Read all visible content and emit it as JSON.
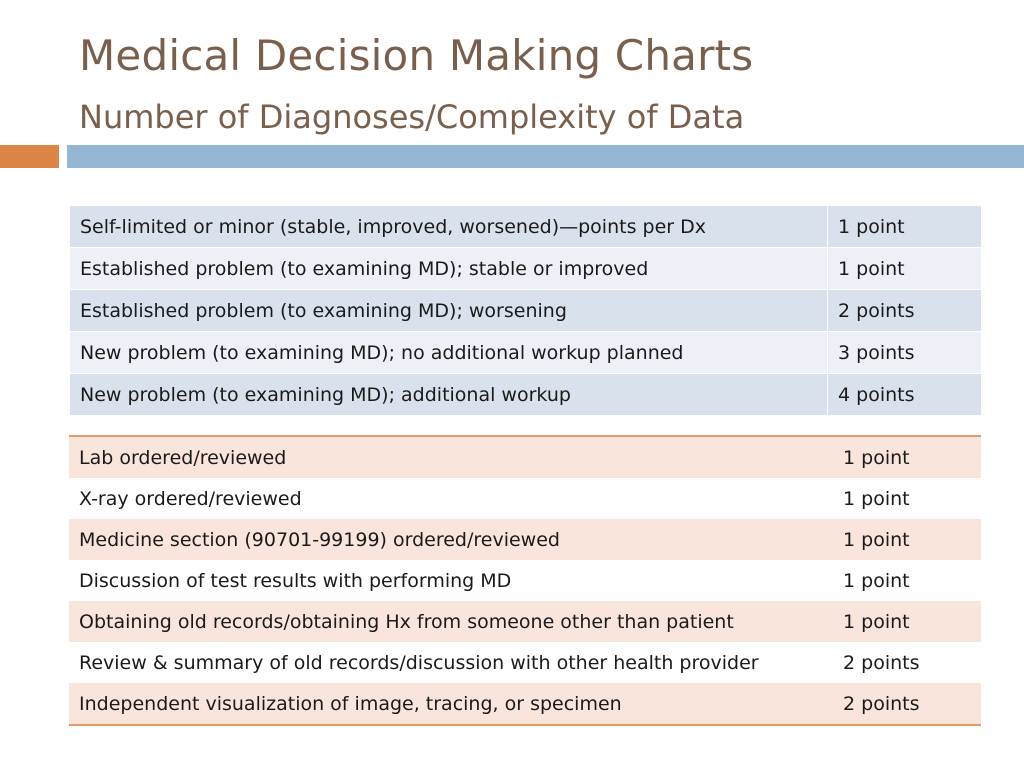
{
  "slide": {
    "title": "Medical Decision Making Charts",
    "subtitle": "Number of Diagnoses/Complexity of Data"
  },
  "diagnoses_table": {
    "rows": [
      {
        "item": "Self-limited or minor (stable, improved, worsened)—points per Dx",
        "points": "1 point"
      },
      {
        "item": "Established problem (to examining MD); stable or improved",
        "points": "1 point"
      },
      {
        "item": "Established problem (to examining MD); worsening",
        "points": "2 points"
      },
      {
        "item": "New problem (to examining MD); no additional workup planned",
        "points": "3 points"
      },
      {
        "item": "New problem (to examining MD); additional workup",
        "points": "4 points"
      }
    ]
  },
  "data_table": {
    "rows": [
      {
        "item": "Lab ordered/reviewed",
        "points": "1 point"
      },
      {
        "item": "X-ray ordered/reviewed",
        "points": "1 point"
      },
      {
        "item": "Medicine section (90701-99199) ordered/reviewed",
        "points": "1 point"
      },
      {
        "item": "Discussion of test results with performing MD",
        "points": "1 point"
      },
      {
        "item": "Obtaining old records/obtaining Hx from someone other than patient",
        "points": "1 point"
      },
      {
        "item": "Review & summary of old records/discussion with other health provider",
        "points": "2 points"
      },
      {
        "item": "Independent visualization of image, tracing, or specimen",
        "points": "2 points"
      }
    ]
  },
  "colors": {
    "title": "#7a5f4d",
    "accent_orange": "#dd8546",
    "accent_blue": "#94b6d2",
    "table1_band_dark": "#d9e1ec",
    "table1_band_light": "#edf1f7",
    "table2_band": "#fae5dd",
    "table2_rule": "#e59a6a"
  }
}
